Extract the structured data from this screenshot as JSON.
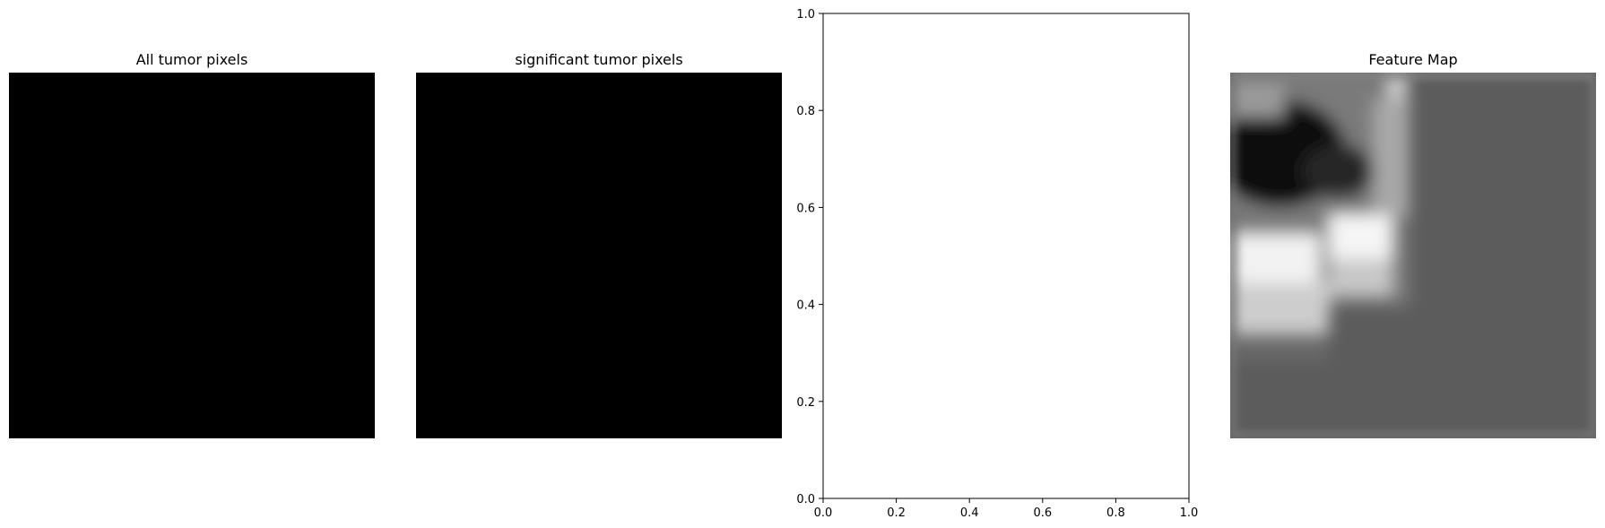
{
  "panels": [
    {
      "title": "All tumor pixels"
    },
    {
      "title": "significant tumor pixels"
    },
    {
      "title": ""
    },
    {
      "title": "Feature Map"
    }
  ],
  "chart_data": [
    {
      "type": "heatmap",
      "title": "All tumor pixels",
      "colormap": "gray",
      "values": [
        [
          0
        ]
      ],
      "description": "uniform black image, axes hidden"
    },
    {
      "type": "heatmap",
      "title": "significant tumor pixels",
      "colormap": "gray",
      "values": [
        [
          0
        ]
      ],
      "description": "uniform black image, axes hidden"
    },
    {
      "type": "scatter",
      "title": "",
      "xlabel": "",
      "ylabel": "",
      "xlim": [
        0.0,
        1.0
      ],
      "ylim": [
        0.0,
        1.0
      ],
      "xticks": [
        "0.0",
        "0.2",
        "0.4",
        "0.6",
        "0.8",
        "1.0"
      ],
      "yticks": [
        "0.0",
        "0.2",
        "0.4",
        "0.6",
        "0.8",
        "1.0"
      ],
      "x": [],
      "y": [],
      "grid": false
    },
    {
      "type": "heatmap",
      "title": "Feature Map",
      "colormap": "gray",
      "description": "grayscale feature map: dark region upper-left, bright bands left-center, mid-gray elsewhere"
    }
  ],
  "colors": {
    "black": "#000000",
    "feature_background": "#5c5c5c",
    "axis": "#000000"
  }
}
